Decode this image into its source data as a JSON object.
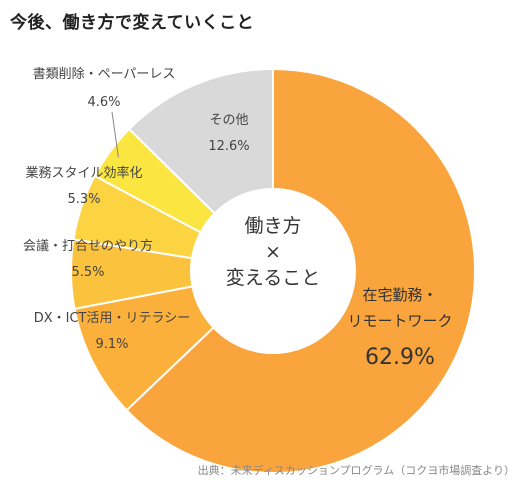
{
  "title": "今後、働き方で変えていくこと",
  "center_label": [
    "働き方",
    "×",
    "変えること"
  ],
  "source": "出典：未来ディスカッションプログラム（コクヨ市場調査より）",
  "chart_data": {
    "type": "pie",
    "donut": true,
    "slices": [
      {
        "label": "在宅勤務・リモートワーク",
        "label_lines": [
          "在宅勤務・",
          "リモートワーク"
        ],
        "value": 62.9,
        "value_text": "62.9%",
        "color": "#F9A43C"
      },
      {
        "label": "DX・ICT活用・リテラシー",
        "label_lines": [
          "DX・ICT活用・リテラシー"
        ],
        "value": 9.1,
        "value_text": "9.1%",
        "color": "#FBB03B"
      },
      {
        "label": "会議・打合せのやり方",
        "label_lines": [
          "会議・打合せのやり方"
        ],
        "value": 5.5,
        "value_text": "5.5%",
        "color": "#FBC23E"
      },
      {
        "label": "業務スタイル効率化",
        "label_lines": [
          "業務スタイル効率化"
        ],
        "value": 5.3,
        "value_text": "5.3%",
        "color": "#FCD340"
      },
      {
        "label": "書類削除・ペーパーレス",
        "label_lines": [
          "書類削除・ペーパーレス"
        ],
        "value": 4.6,
        "value_text": "4.6%",
        "color": "#FBE541"
      },
      {
        "label": "その他",
        "label_lines": [
          "その他"
        ],
        "value": 12.6,
        "value_text": "12.6%",
        "color": "#D9D9D9"
      }
    ]
  }
}
